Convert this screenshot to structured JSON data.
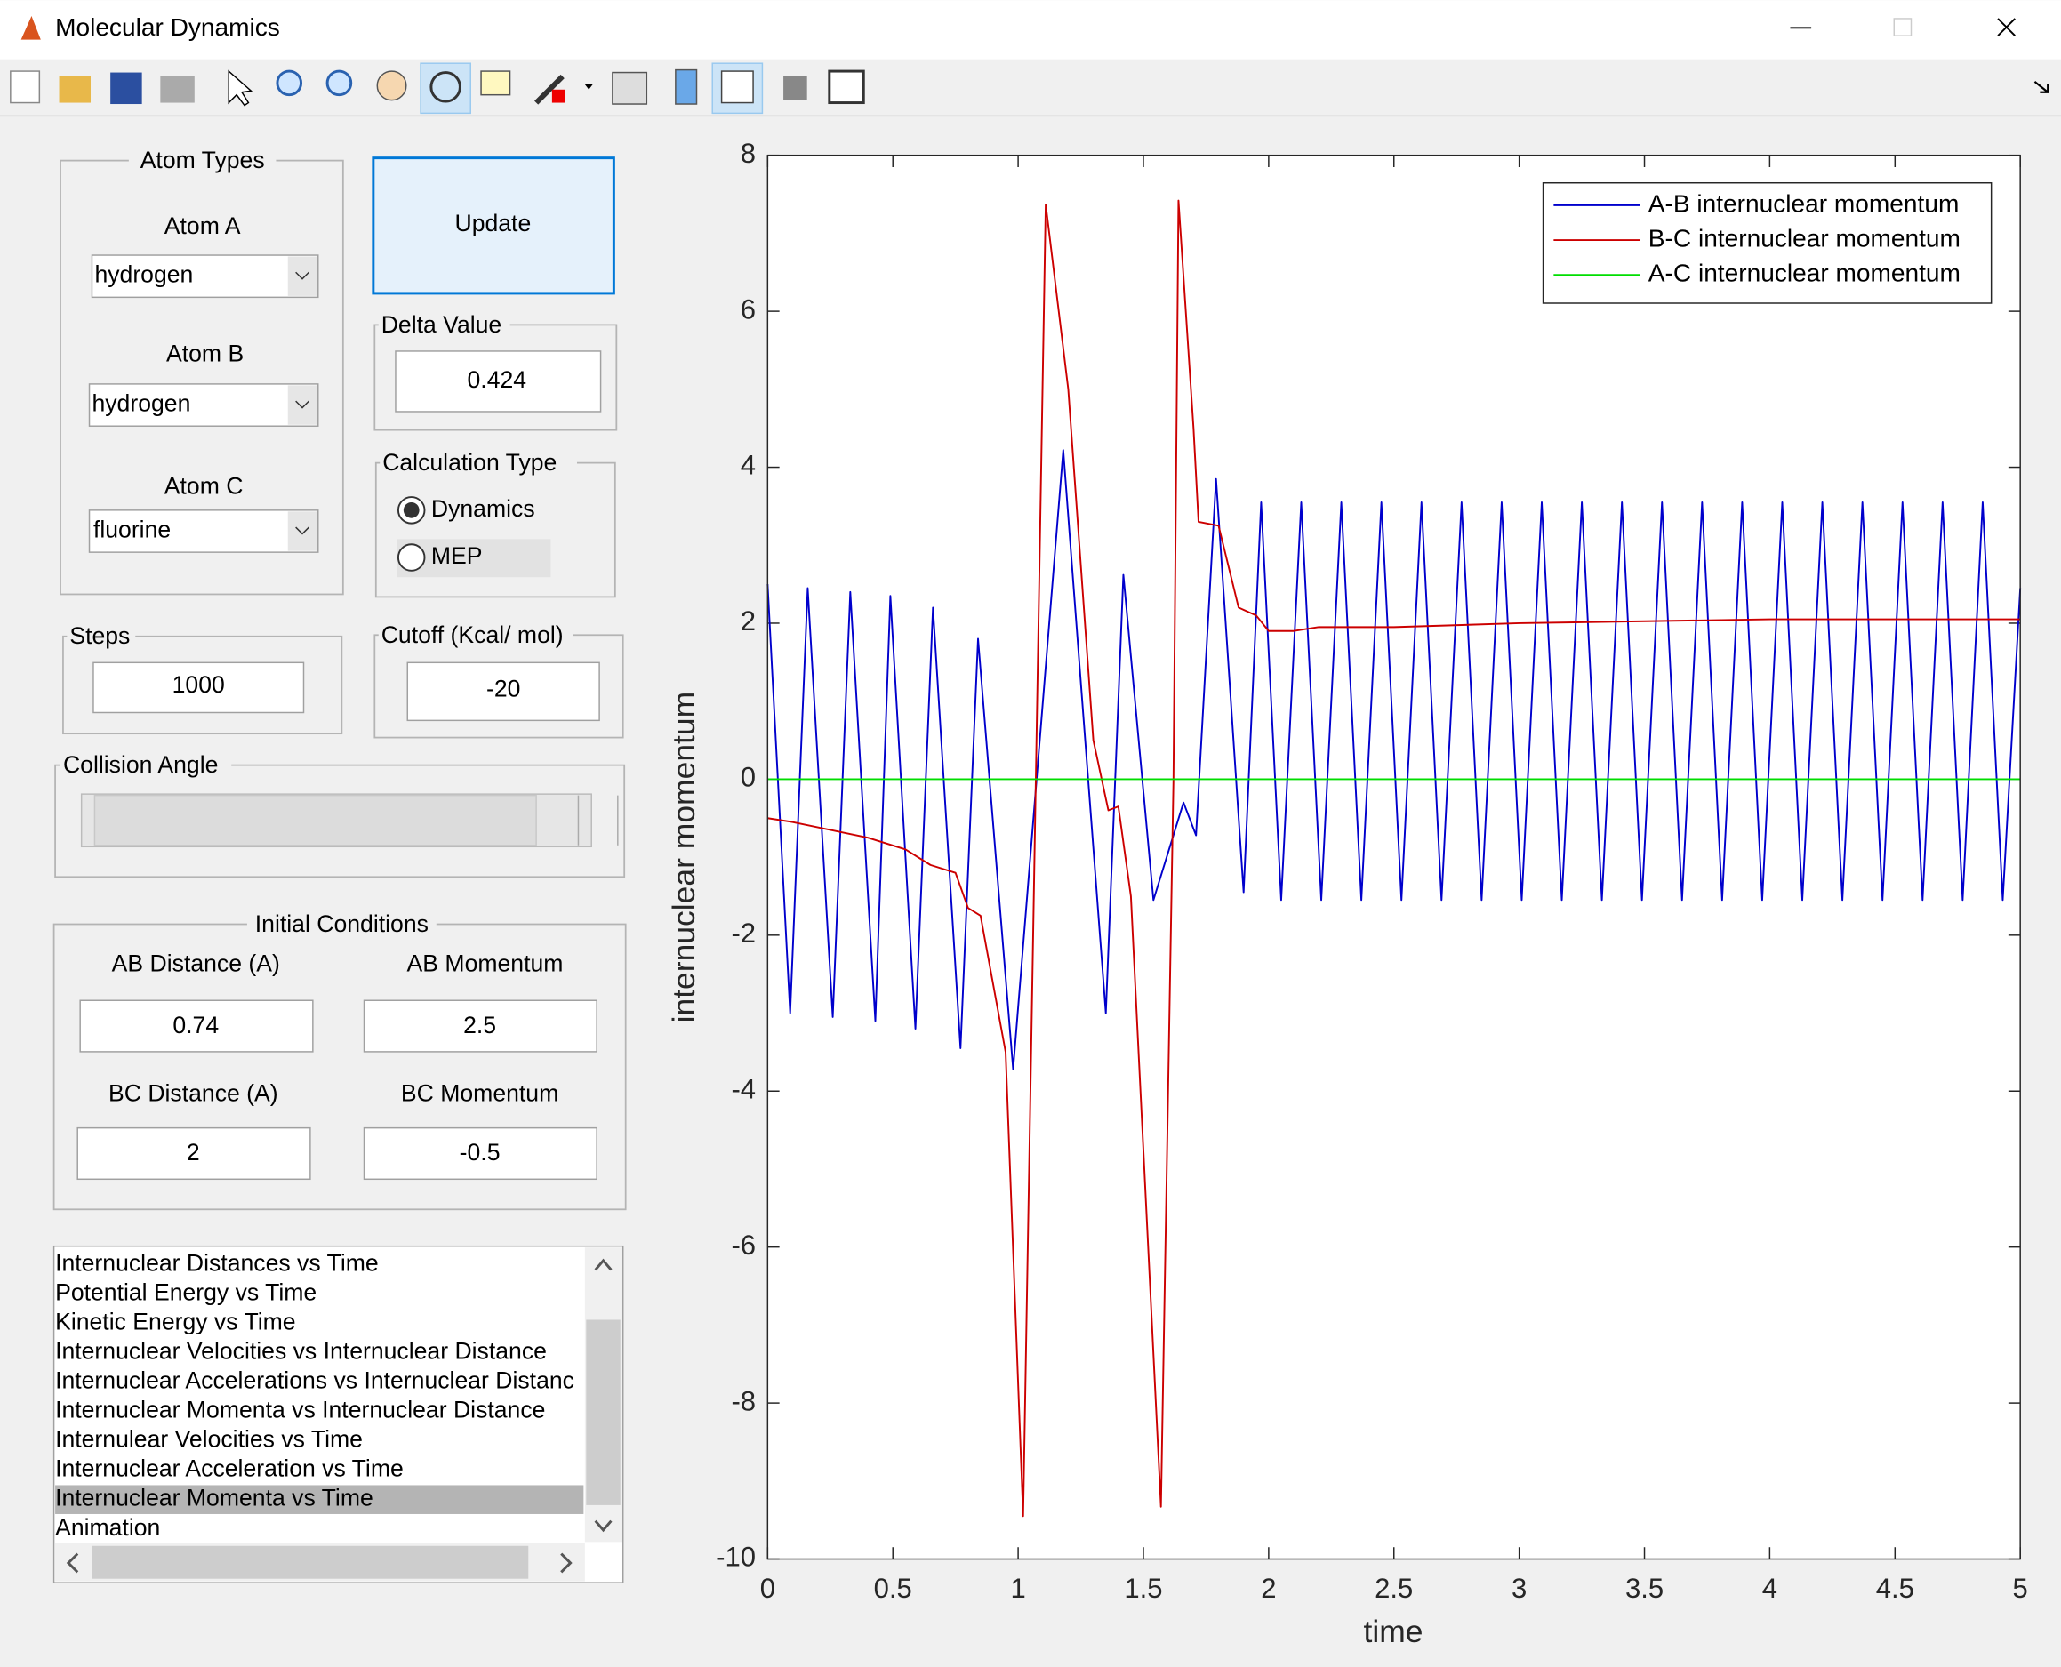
{
  "window": {
    "title": "Molecular Dynamics"
  },
  "controls": {
    "atom_types": {
      "title": "Atom Types",
      "atoms": [
        {
          "label": "Atom A",
          "value": "hydrogen"
        },
        {
          "label": "Atom B",
          "value": "hydrogen"
        },
        {
          "label": "Atom C",
          "value": "fluorine"
        }
      ]
    },
    "update": "Update",
    "delta_value": {
      "title": "Delta Value",
      "value": "0.424"
    },
    "calculation_type": {
      "title": "Calculation Type",
      "options": [
        "Dynamics",
        "MEP"
      ],
      "selected": 0
    },
    "steps": {
      "title": "Steps",
      "value": "1000"
    },
    "cutoff": {
      "title": "Cutoff (Kcal/ mol)",
      "value": "-20"
    },
    "collision_angle": {
      "title": "Collision Angle"
    },
    "initial_conditions": {
      "title": "Initial Conditions",
      "fields": [
        {
          "label": "AB Distance (A)",
          "value": "0.74"
        },
        {
          "label": "AB Momentum",
          "value": "2.5"
        },
        {
          "label": "BC Distance (A)",
          "value": "2"
        },
        {
          "label": "BC Momentum",
          "value": "-0.5"
        }
      ]
    },
    "plot_list": {
      "items": [
        "Internuclear Distances vs Time",
        "Potential Energy vs Time",
        "Kinetic Energy vs Time",
        "Internuclear Velocities vs Internuclear Distance",
        "Internuclear Accelerations vs Internuclear Distanc",
        "Internuclear Momenta vs Internuclear Distance",
        "Internulear Velocities vs Time",
        "Internuclear Acceleration vs Time",
        "Internuclear Momenta vs Time",
        "Animation"
      ],
      "selected": 8
    }
  },
  "chart_data": {
    "type": "line",
    "xlabel": "time",
    "ylabel": "internuclear momentum",
    "xlim": [
      0,
      5
    ],
    "xticks": [
      0,
      0.5,
      1,
      1.5,
      2,
      2.5,
      3,
      3.5,
      4,
      4.5,
      5
    ],
    "ylim": [
      -10,
      8
    ],
    "yticks": [
      -10,
      -8,
      -6,
      -4,
      -2,
      0,
      2,
      4,
      6,
      8
    ],
    "legend": "upper right",
    "series": [
      {
        "name": "A-B internuclear momentum",
        "color": "#0000cc",
        "x": [
          0,
          0.09,
          0.16,
          0.26,
          0.33,
          0.43,
          0.49,
          0.59,
          0.66,
          0.77,
          0.84,
          0.98,
          1.18,
          1.35,
          1.42,
          1.54,
          1.66,
          1.71,
          1.79,
          1.9,
          1.97,
          2.05,
          2.13,
          2.21,
          2.29,
          2.37,
          2.45,
          2.53,
          2.61,
          2.69,
          2.77,
          2.85,
          2.93,
          3.01,
          3.09,
          3.17,
          3.25,
          3.33,
          3.41,
          3.49,
          3.57,
          3.65,
          3.73,
          3.81,
          3.89,
          3.97,
          4.05,
          4.13,
          4.21,
          4.29,
          4.37,
          4.45,
          4.53,
          4.61,
          4.69,
          4.77,
          4.85,
          4.93,
          5
        ],
        "values": [
          2.5,
          -3.0,
          2.45,
          -3.05,
          2.4,
          -3.1,
          2.35,
          -3.2,
          2.2,
          -3.45,
          1.8,
          -3.72,
          4.22,
          -3.0,
          2.62,
          -1.55,
          -0.3,
          -0.72,
          3.85,
          -1.45,
          3.55,
          -1.55,
          3.55,
          -1.55,
          3.55,
          -1.55,
          3.55,
          -1.55,
          3.55,
          -1.55,
          3.55,
          -1.55,
          3.55,
          -1.55,
          3.55,
          -1.55,
          3.55,
          -1.55,
          3.55,
          -1.55,
          3.55,
          -1.55,
          3.55,
          -1.55,
          3.55,
          -1.55,
          3.55,
          -1.55,
          3.55,
          -1.55,
          3.55,
          -1.55,
          3.55,
          -1.55,
          3.55,
          -1.55,
          3.55,
          -1.55,
          2.45
        ]
      },
      {
        "name": "B-C internuclear momentum",
        "color": "#cc0000",
        "x": [
          0,
          0.1,
          0.25,
          0.4,
          0.55,
          0.65,
          0.75,
          0.8,
          0.85,
          0.95,
          1.02,
          1.11,
          1.2,
          1.3,
          1.36,
          1.4,
          1.45,
          1.57,
          1.62,
          1.64,
          1.7,
          1.72,
          1.8,
          1.88,
          1.95,
          2.0,
          2.1,
          2.2,
          2.5,
          3,
          4,
          5
        ],
        "values": [
          -0.5,
          -0.55,
          -0.65,
          -0.75,
          -0.9,
          -1.1,
          -1.2,
          -1.65,
          -1.75,
          -3.5,
          -9.45,
          7.37,
          5.0,
          0.5,
          -0.4,
          -0.35,
          -1.5,
          -9.33,
          0,
          7.42,
          4.5,
          3.3,
          3.25,
          2.2,
          2.1,
          1.9,
          1.9,
          1.95,
          1.95,
          2.0,
          2.05,
          2.05
        ]
      },
      {
        "name": "A-C internuclear momentum",
        "color": "#00dd00",
        "x": [
          0,
          5
        ],
        "values": [
          0,
          0
        ]
      }
    ]
  }
}
